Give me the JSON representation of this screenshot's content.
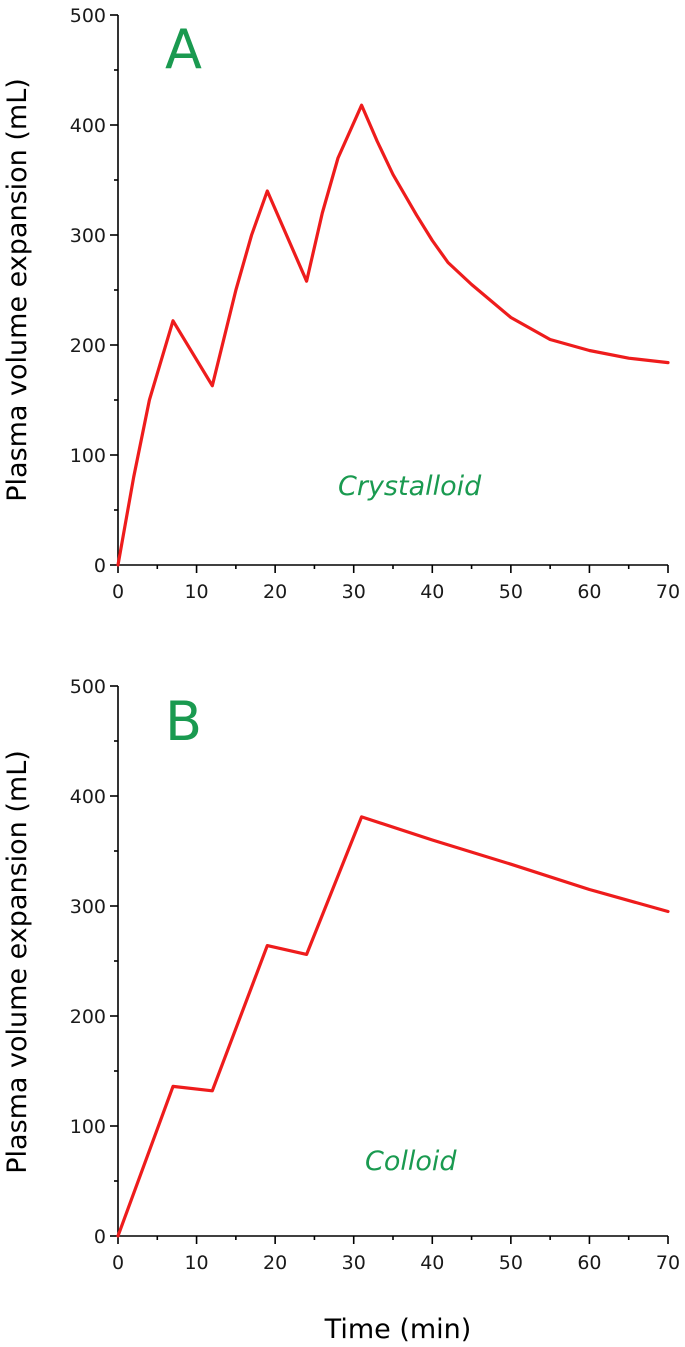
{
  "colors": {
    "series": "#ee1c1c",
    "annotation": "#1a9a50",
    "axis": "#000000"
  },
  "chart_data": [
    {
      "type": "line",
      "panel_label": "A",
      "annotation": "Crystalloid",
      "ylabel": "Plasma volume expansion (mL)",
      "xlabel": "",
      "xlim": [
        0,
        70
      ],
      "ylim": [
        0,
        500
      ],
      "xticks": [
        0,
        10,
        20,
        30,
        40,
        50,
        60,
        70
      ],
      "yticks": [
        0,
        100,
        200,
        300,
        400,
        500
      ],
      "grid": false,
      "series": [
        {
          "x": [
            0,
            2,
            4,
            7,
            12,
            15,
            17,
            19,
            24,
            26,
            28,
            31,
            33,
            35,
            38,
            40,
            42,
            45,
            50,
            55,
            60,
            65,
            70
          ],
          "y": [
            0,
            80,
            150,
            222,
            163,
            250,
            300,
            340,
            258,
            320,
            370,
            418,
            385,
            355,
            318,
            295,
            275,
            255,
            225,
            205,
            195,
            188,
            184
          ]
        }
      ]
    },
    {
      "type": "line",
      "panel_label": "B",
      "annotation": "Colloid",
      "ylabel": "Plasma volume expansion (mL)",
      "xlabel": "Time (min)",
      "xlim": [
        0,
        70
      ],
      "ylim": [
        0,
        500
      ],
      "xticks": [
        0,
        10,
        20,
        30,
        40,
        50,
        60,
        70
      ],
      "yticks": [
        0,
        100,
        200,
        300,
        400,
        500
      ],
      "grid": false,
      "series": [
        {
          "x": [
            0,
            7,
            12,
            19,
            24,
            31,
            40,
            50,
            60,
            70
          ],
          "y": [
            0,
            136,
            132,
            264,
            256,
            381,
            360,
            338,
            315,
            295
          ]
        }
      ]
    }
  ]
}
